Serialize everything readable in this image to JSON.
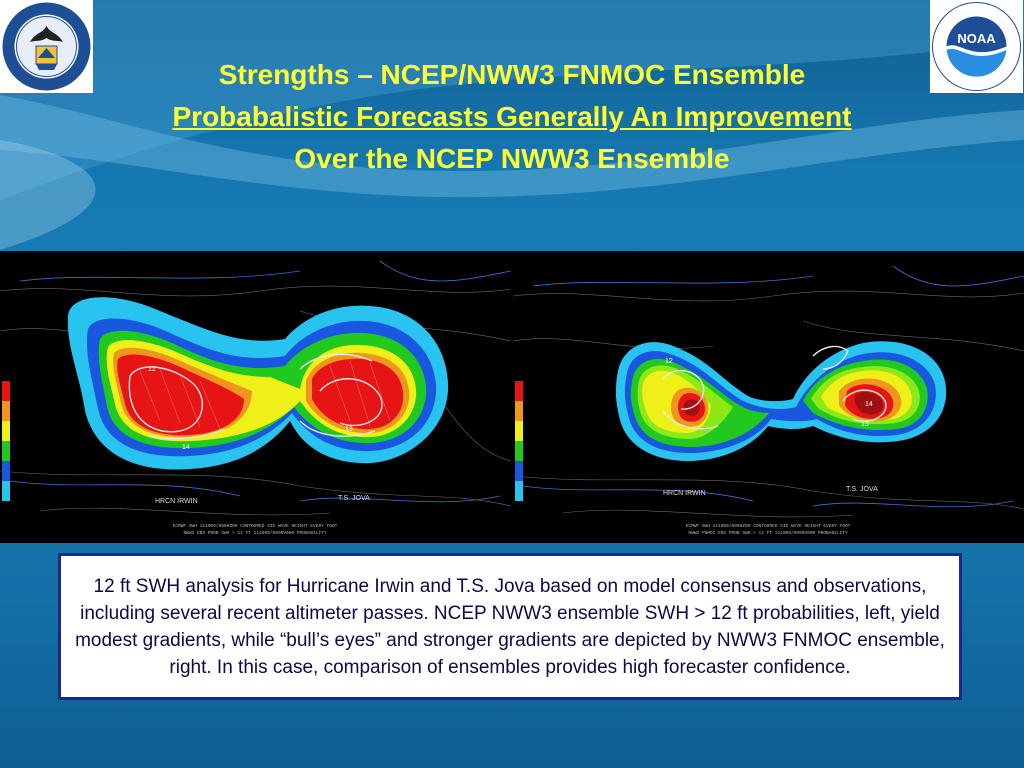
{
  "title": {
    "line1": "Strengths – NCEP/NWW3 FNMOC Ensemble",
    "line2": "Probabalistic Forecasts Generally An Improvement",
    "line3": "Over the NCEP NWW3 Ensemble"
  },
  "logos": {
    "left": {
      "text_top": "DEPARTMENT OF COMMERCE",
      "text_bottom": "UNITED STATES OF AMERICA"
    },
    "right": {
      "mark": "NOAA",
      "text_top": "NATIONAL OCEANIC AND ATMOSPHERIC ADMINISTRATION",
      "text_bottom": "U.S. DEPARTMENT OF COMMERCE"
    }
  },
  "maps": {
    "left": {
      "labels": {
        "storm_west": "HRCN IRWIN",
        "storm_east": "T.S. JOVA",
        "contour_12": "12",
        "contour_14": "14",
        "contour_13": "13"
      },
      "footer_line1": "ECMWF SWH 111009/0000Z00 CONTOURED SIG WAVE HEIGHT EVERY FOOT",
      "footer_line2": "NWW3 ENS PROB SWH > 12 FT 111009/0000V000 PROBABILITY"
    },
    "right": {
      "labels": {
        "storm_west": "HRCN IRWIN",
        "storm_east": "T.S. JOVA",
        "contour_12": "12",
        "contour_14": "14",
        "contour_13": "13"
      },
      "footer_line1": "ECMWF SWH 111009/0000Z00 CONTOURED SIG WAVE HEIGHT EVERY FOOT",
      "footer_line2": "NWW3 FNMOC ENS PROB SWH > 12 FT 111009/0000V000 PROBABILITY"
    },
    "colors": {
      "outer": "#29c3f0",
      "blue": "#1a57e0",
      "green": "#21c81e",
      "lime": "#8ee818",
      "yellow": "#f0f019",
      "orange": "#f0961e",
      "red": "#e61414",
      "darkred": "#a01010"
    }
  },
  "caption": "12 ft SWH analysis for Hurricane Irwin and T.S. Jova based on model consensus and observations, including several recent altimeter passes. NCEP NWW3 ensemble SWH > 12 ft probabilities, left, yield modest gradients, while “bull’s eyes” and stronger gradients are depicted by NWW3 FNMOC ensemble, right. In this case, comparison of ensembles provides high forecaster confidence."
}
